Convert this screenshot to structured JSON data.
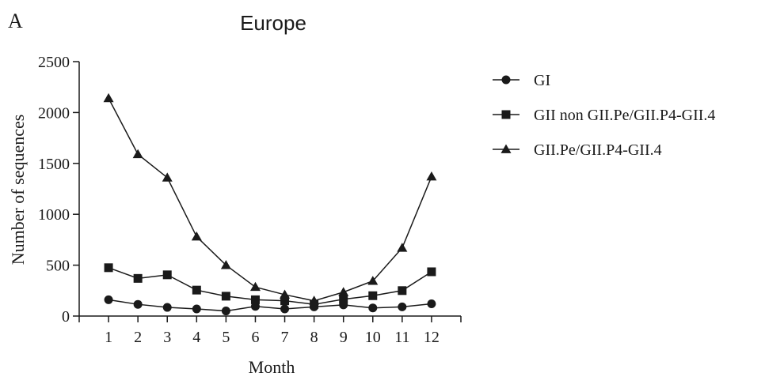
{
  "panel_label": "A",
  "chart_data": {
    "type": "line",
    "title": "Europe",
    "xlabel": "Month",
    "ylabel": "Number of sequences",
    "x": [
      1,
      2,
      3,
      4,
      5,
      6,
      7,
      8,
      9,
      10,
      11,
      12
    ],
    "xlim": [
      0,
      13
    ],
    "ylim": [
      0,
      2500
    ],
    "yticks": [
      0,
      500,
      1000,
      1500,
      2000,
      2500
    ],
    "grid": false,
    "legend_position": "right",
    "series": [
      {
        "name": "GI",
        "marker": "circle",
        "color": "#1a1a1a",
        "values": [
          160,
          115,
          85,
          70,
          50,
          95,
          70,
          90,
          110,
          80,
          90,
          120
        ]
      },
      {
        "name": "GII non GII.Pe/GII.P4-GII.4",
        "marker": "square",
        "color": "#1a1a1a",
        "values": [
          475,
          370,
          405,
          255,
          195,
          160,
          150,
          115,
          165,
          200,
          250,
          435
        ]
      },
      {
        "name": "GII.Pe/GII.P4-GII.4",
        "marker": "triangle",
        "color": "#1a1a1a",
        "values": [
          2140,
          1590,
          1360,
          780,
          500,
          285,
          210,
          150,
          235,
          345,
          670,
          1370
        ]
      }
    ]
  }
}
